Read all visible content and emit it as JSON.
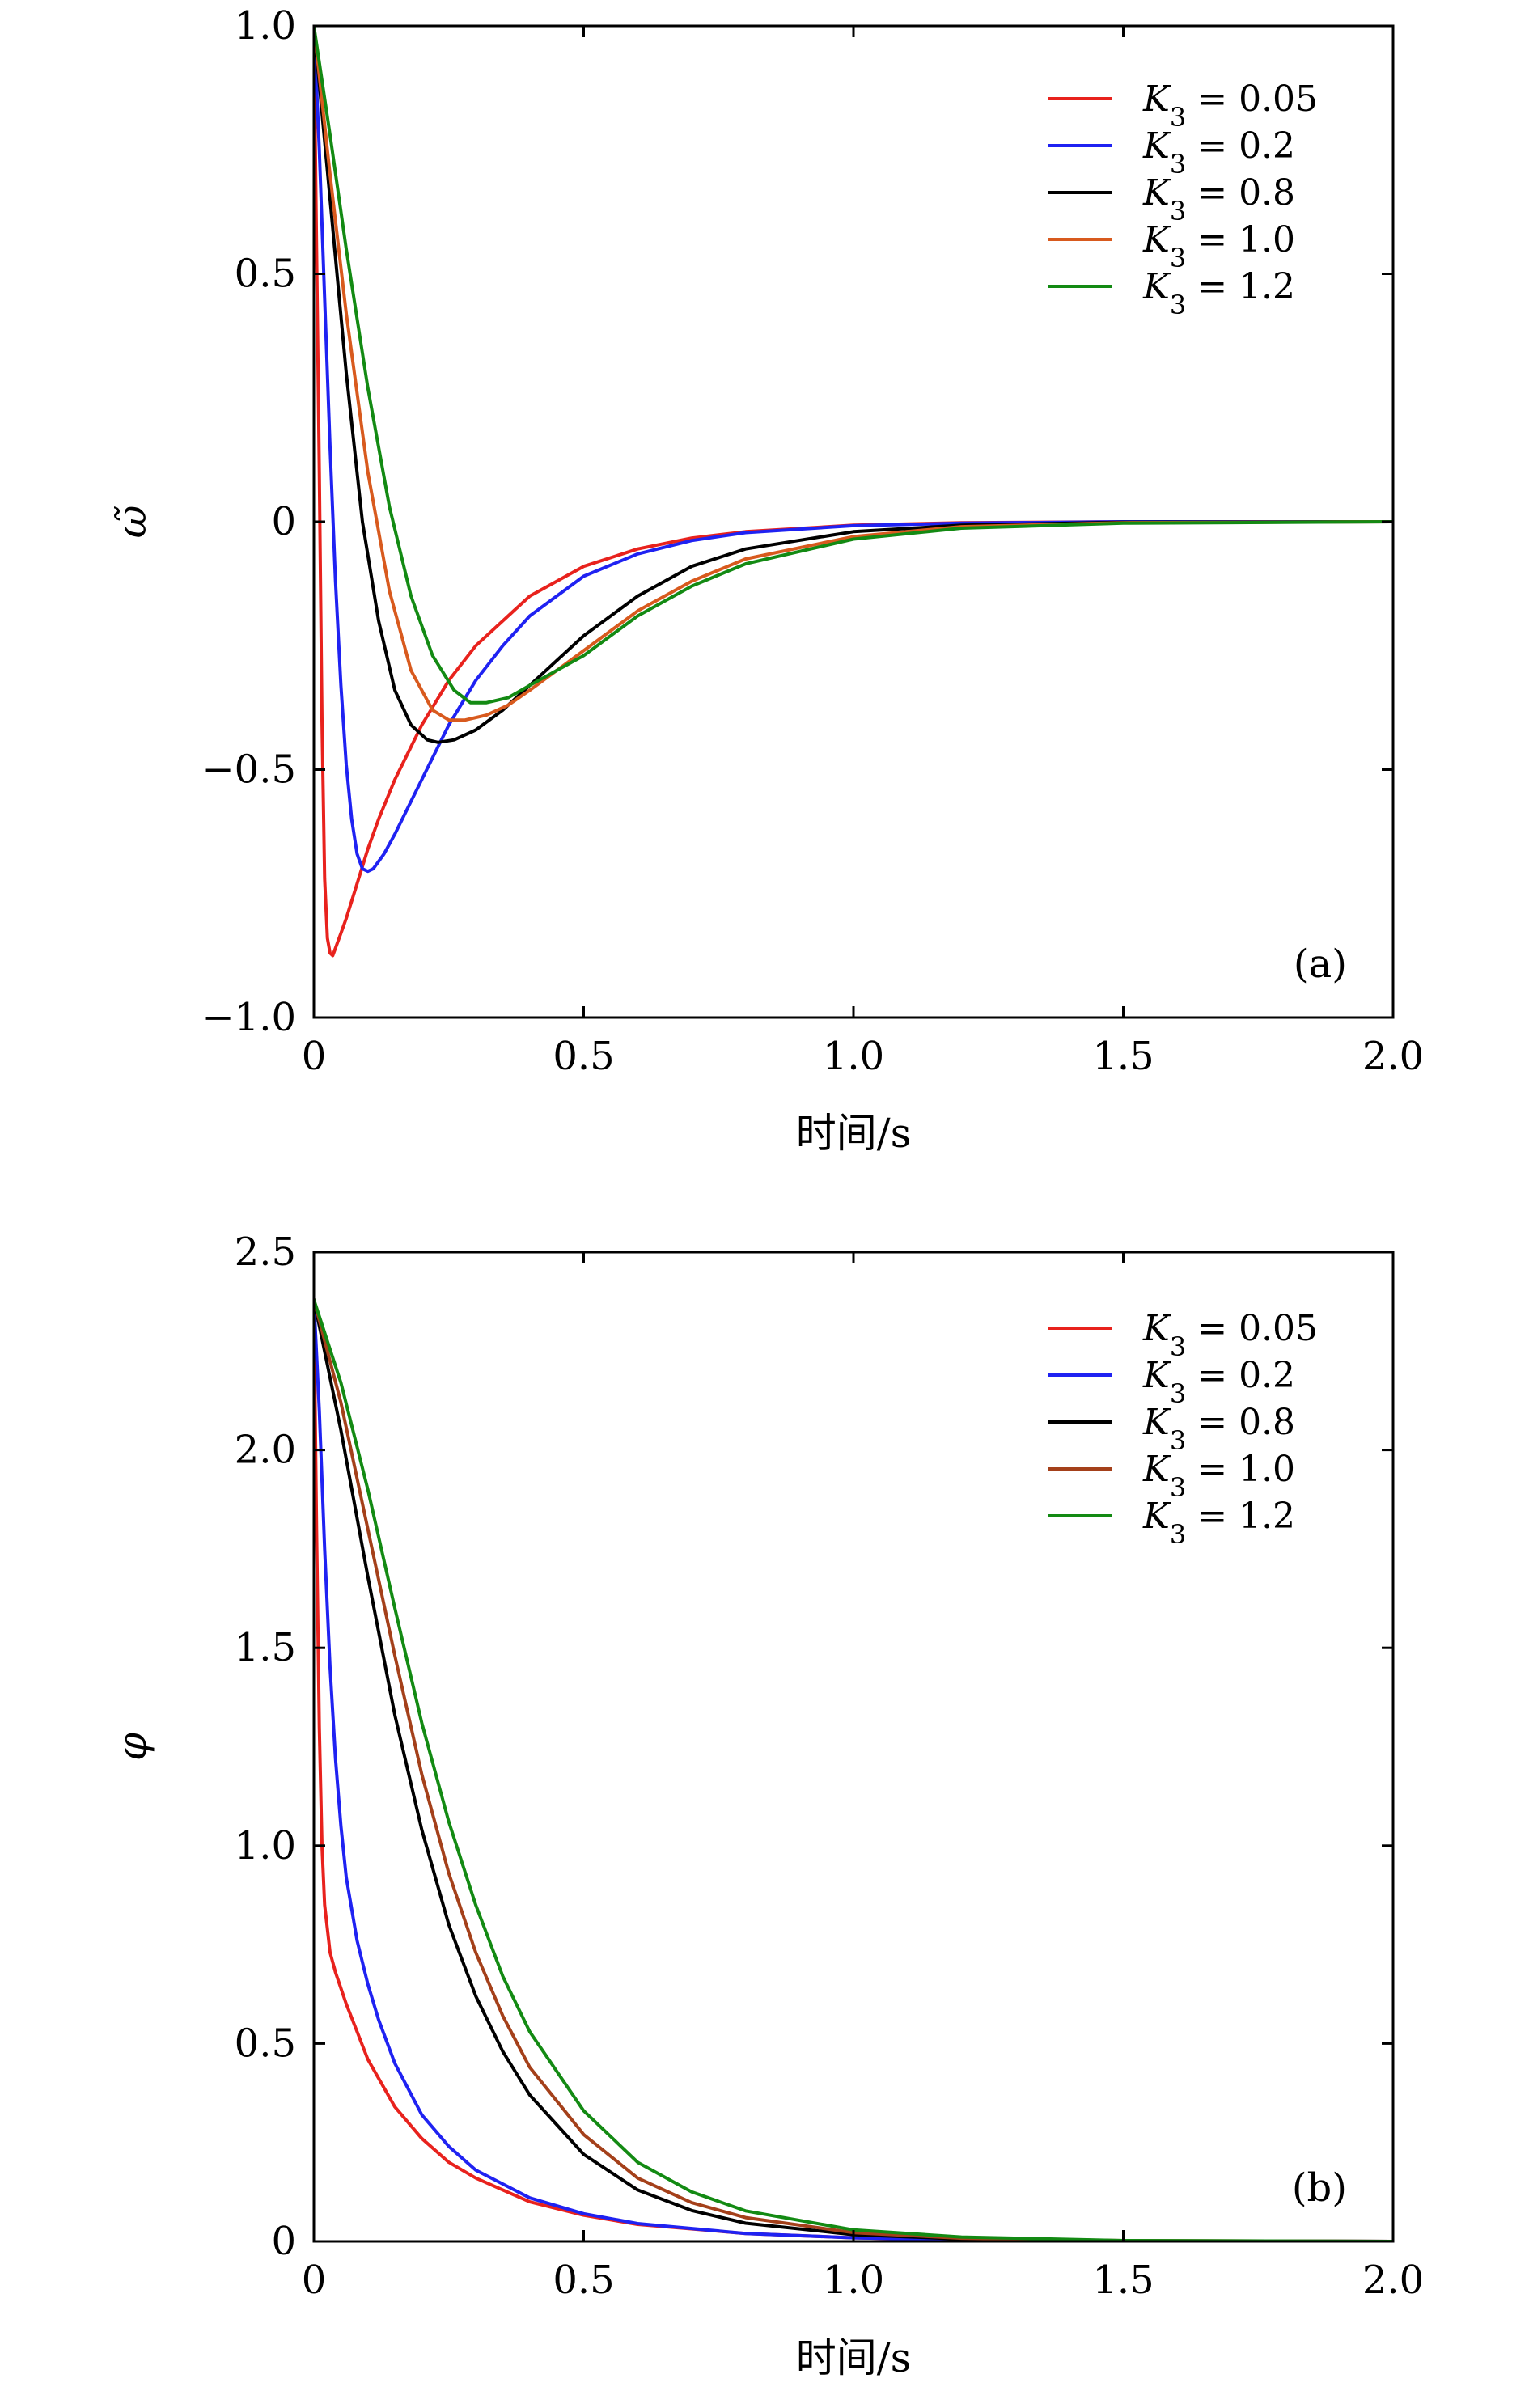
{
  "chart_data": [
    {
      "type": "line",
      "panel_label": "(a)",
      "xlabel": "时间/s",
      "ylabel": "ω̃",
      "xlim": [
        0,
        2.0
      ],
      "ylim": [
        -1.0,
        1.0
      ],
      "xticks": [
        0,
        0.5,
        1.0,
        1.5,
        2.0
      ],
      "xtick_labels": [
        "0",
        "0.5",
        "1.0",
        "1.5",
        "2.0"
      ],
      "yticks": [
        -1.0,
        -0.5,
        0,
        0.5,
        1.0
      ],
      "ytick_labels": [
        "−1.0",
        "−0.5",
        "0",
        "0.5",
        "1.0"
      ],
      "legend_position": "top-right",
      "grid": false,
      "series": [
        {
          "name": "K3 = 0.05",
          "color": "#e8221d",
          "x": [
            0,
            0.005,
            0.01,
            0.015,
            0.02,
            0.025,
            0.03,
            0.035,
            0.04,
            0.05,
            0.06,
            0.08,
            0.1,
            0.12,
            0.15,
            0.2,
            0.25,
            0.3,
            0.4,
            0.5,
            0.6,
            0.7,
            0.8,
            1.0,
            1.2,
            1.5,
            2.0
          ],
          "y": [
            1.0,
            0.55,
            0.1,
            -0.4,
            -0.72,
            -0.84,
            -0.87,
            -0.875,
            -0.86,
            -0.83,
            -0.8,
            -0.73,
            -0.66,
            -0.6,
            -0.52,
            -0.41,
            -0.32,
            -0.25,
            -0.15,
            -0.09,
            -0.055,
            -0.033,
            -0.02,
            -0.007,
            -0.002,
            0,
            0
          ]
        },
        {
          "name": "K3 = 0.2",
          "color": "#1f22f2",
          "x": [
            0,
            0.01,
            0.02,
            0.03,
            0.04,
            0.05,
            0.06,
            0.07,
            0.08,
            0.09,
            0.1,
            0.11,
            0.13,
            0.15,
            0.2,
            0.25,
            0.3,
            0.35,
            0.4,
            0.5,
            0.6,
            0.7,
            0.8,
            1.0,
            1.2,
            1.5,
            2.0
          ],
          "y": [
            1.0,
            0.75,
            0.45,
            0.15,
            -0.12,
            -0.33,
            -0.49,
            -0.6,
            -0.67,
            -0.7,
            -0.705,
            -0.7,
            -0.67,
            -0.63,
            -0.52,
            -0.41,
            -0.32,
            -0.25,
            -0.19,
            -0.11,
            -0.065,
            -0.038,
            -0.022,
            -0.008,
            -0.003,
            0,
            0
          ]
        },
        {
          "name": "K3 = 0.8",
          "color": "#000000",
          "x": [
            0,
            0.03,
            0.06,
            0.09,
            0.12,
            0.15,
            0.18,
            0.21,
            0.23,
            0.26,
            0.3,
            0.35,
            0.4,
            0.5,
            0.6,
            0.7,
            0.8,
            1.0,
            1.2,
            1.5,
            2.0
          ],
          "y": [
            1.0,
            0.65,
            0.3,
            0.0,
            -0.2,
            -0.34,
            -0.41,
            -0.44,
            -0.445,
            -0.44,
            -0.42,
            -0.38,
            -0.33,
            -0.23,
            -0.15,
            -0.09,
            -0.055,
            -0.02,
            -0.007,
            -0.001,
            0
          ]
        },
        {
          "name": "K3 = 1.0",
          "color": "#d85a1e",
          "x": [
            0,
            0.03,
            0.06,
            0.1,
            0.14,
            0.18,
            0.22,
            0.25,
            0.28,
            0.32,
            0.36,
            0.4,
            0.5,
            0.6,
            0.7,
            0.8,
            1.0,
            1.2,
            1.5,
            2.0
          ],
          "y": [
            1.0,
            0.7,
            0.42,
            0.1,
            -0.14,
            -0.3,
            -0.38,
            -0.4,
            -0.4,
            -0.39,
            -0.37,
            -0.34,
            -0.26,
            -0.18,
            -0.12,
            -0.075,
            -0.03,
            -0.01,
            -0.002,
            0
          ]
        },
        {
          "name": "K3 = 1.2",
          "color": "#138a13",
          "x": [
            0,
            0.03,
            0.06,
            0.1,
            0.14,
            0.18,
            0.22,
            0.26,
            0.29,
            0.32,
            0.36,
            0.4,
            0.5,
            0.6,
            0.7,
            0.8,
            1.0,
            1.2,
            1.5,
            2.0
          ],
          "y": [
            1.0,
            0.78,
            0.55,
            0.27,
            0.03,
            -0.15,
            -0.27,
            -0.34,
            -0.365,
            -0.365,
            -0.355,
            -0.33,
            -0.27,
            -0.19,
            -0.13,
            -0.085,
            -0.035,
            -0.013,
            -0.003,
            0
          ]
        }
      ]
    },
    {
      "type": "line",
      "panel_label": "(b)",
      "xlabel": "时间/s",
      "ylabel": "φ",
      "xlim": [
        0,
        2.0
      ],
      "ylim": [
        0,
        2.5
      ],
      "xticks": [
        0,
        0.5,
        1.0,
        1.5,
        2.0
      ],
      "xtick_labels": [
        "0",
        "0.5",
        "1.0",
        "1.5",
        "2.0"
      ],
      "yticks": [
        0,
        0.5,
        1.0,
        1.5,
        2.0,
        2.5
      ],
      "ytick_labels": [
        "0",
        "0.5",
        "1.0",
        "1.5",
        "2.0",
        "2.5"
      ],
      "legend_position": "top-right",
      "grid": false,
      "series": [
        {
          "name": "K3 = 0.05",
          "color": "#e8221d",
          "x": [
            0,
            0.005,
            0.01,
            0.015,
            0.02,
            0.03,
            0.04,
            0.06,
            0.08,
            0.1,
            0.15,
            0.2,
            0.25,
            0.3,
            0.4,
            0.5,
            0.6,
            0.8,
            1.0,
            1.2,
            1.5,
            2.0
          ],
          "y": [
            2.38,
            1.8,
            1.3,
            1.0,
            0.85,
            0.73,
            0.68,
            0.6,
            0.53,
            0.46,
            0.34,
            0.26,
            0.2,
            0.16,
            0.1,
            0.066,
            0.043,
            0.02,
            0.009,
            0.004,
            0.001,
            0
          ]
        },
        {
          "name": "K3 = 0.2",
          "color": "#1f22f2",
          "x": [
            0,
            0.01,
            0.02,
            0.03,
            0.04,
            0.05,
            0.06,
            0.08,
            0.1,
            0.12,
            0.15,
            0.2,
            0.25,
            0.3,
            0.4,
            0.5,
            0.6,
            0.8,
            1.0,
            1.2,
            1.5,
            2.0
          ],
          "y": [
            2.38,
            2.1,
            1.75,
            1.45,
            1.22,
            1.05,
            0.92,
            0.76,
            0.65,
            0.56,
            0.45,
            0.32,
            0.24,
            0.18,
            0.11,
            0.07,
            0.045,
            0.02,
            0.009,
            0.004,
            0.001,
            0
          ]
        },
        {
          "name": "K3 = 0.8",
          "color": "#000000",
          "x": [
            0,
            0.05,
            0.1,
            0.15,
            0.2,
            0.25,
            0.3,
            0.35,
            0.4,
            0.5,
            0.6,
            0.7,
            0.8,
            1.0,
            1.2,
            1.5,
            2.0
          ],
          "y": [
            2.38,
            2.05,
            1.68,
            1.33,
            1.04,
            0.8,
            0.62,
            0.48,
            0.37,
            0.22,
            0.13,
            0.078,
            0.046,
            0.017,
            0.006,
            0.001,
            0
          ]
        },
        {
          "name": "K3 = 1.0",
          "color": "#a4401a",
          "x": [
            0,
            0.05,
            0.1,
            0.15,
            0.2,
            0.25,
            0.3,
            0.35,
            0.4,
            0.5,
            0.6,
            0.7,
            0.8,
            1.0,
            1.2,
            1.5,
            2.0
          ],
          "y": [
            2.38,
            2.12,
            1.8,
            1.48,
            1.18,
            0.93,
            0.73,
            0.57,
            0.44,
            0.27,
            0.16,
            0.098,
            0.06,
            0.022,
            0.008,
            0.002,
            0
          ]
        },
        {
          "name": "K3 = 1.2",
          "color": "#138a13",
          "x": [
            0,
            0.05,
            0.1,
            0.15,
            0.2,
            0.25,
            0.3,
            0.35,
            0.4,
            0.5,
            0.6,
            0.7,
            0.8,
            1.0,
            1.2,
            1.5,
            2.0
          ],
          "y": [
            2.38,
            2.17,
            1.9,
            1.6,
            1.31,
            1.06,
            0.85,
            0.67,
            0.53,
            0.33,
            0.2,
            0.125,
            0.077,
            0.029,
            0.011,
            0.002,
            0
          ]
        }
      ]
    }
  ]
}
